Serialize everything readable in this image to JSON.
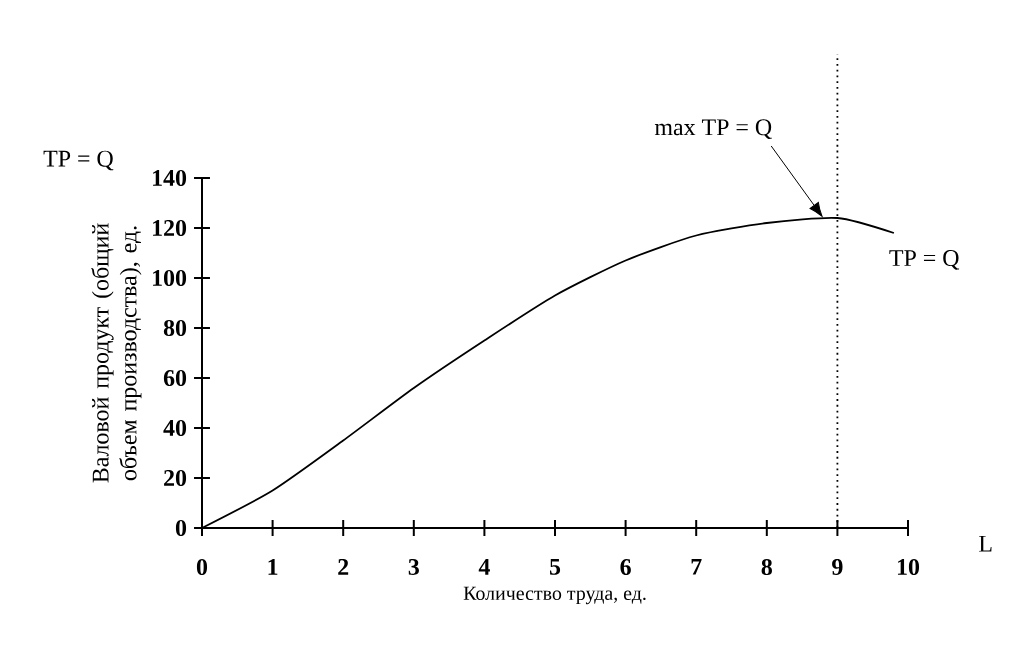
{
  "chart_data": {
    "type": "line",
    "xlabel": "Количество труда, ед.",
    "ylabel": "Валовой продукт (общий объем производства), ед.",
    "x": [
      0,
      1,
      2,
      3,
      4,
      5,
      6,
      7,
      8,
      9,
      9.8
    ],
    "series": [
      {
        "name": "TP = Q",
        "color": "#000000",
        "values": [
          0,
          15,
          35,
          56,
          75,
          93,
          107,
          117,
          122,
          124,
          118
        ]
      }
    ],
    "xlim": [
      0,
      10
    ],
    "ylim": [
      0,
      140
    ],
    "xticks": [
      0,
      1,
      2,
      3,
      4,
      5,
      6,
      7,
      8,
      9,
      10
    ],
    "yticks": [
      0,
      20,
      40,
      60,
      80,
      100,
      120,
      140
    ],
    "ref_lines": [
      {
        "axis": "x",
        "value": 9,
        "line_style": "dotted"
      }
    ],
    "annotations": [
      "TP = Q",
      {
        "text": "max TP = Q",
        "x": 8.8,
        "y": 124
      },
      "L"
    ],
    "grid": false,
    "legend": false,
    "marker": "none",
    "line_style": "solid"
  }
}
